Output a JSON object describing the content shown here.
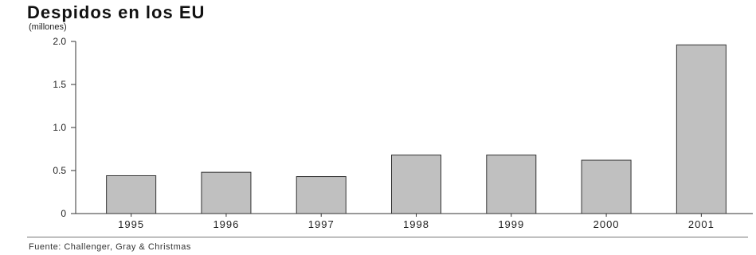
{
  "chart_data": {
    "type": "bar",
    "title": "Despidos en los EU",
    "subtitle": "(millones)",
    "source": "Fuente: Challenger, Gray & Christmas",
    "categories": [
      "1995",
      "1996",
      "1997",
      "1998",
      "1999",
      "2000",
      "2001"
    ],
    "values": [
      0.44,
      0.48,
      0.43,
      0.68,
      0.68,
      0.62,
      1.96
    ],
    "yticks": [
      "0",
      "0.5",
      "1.0",
      "1.5",
      "2.0"
    ],
    "ylim": [
      0,
      2.0
    ],
    "grid": false,
    "bar_color": "#c0c0c0",
    "bar_stroke": "#333333"
  }
}
